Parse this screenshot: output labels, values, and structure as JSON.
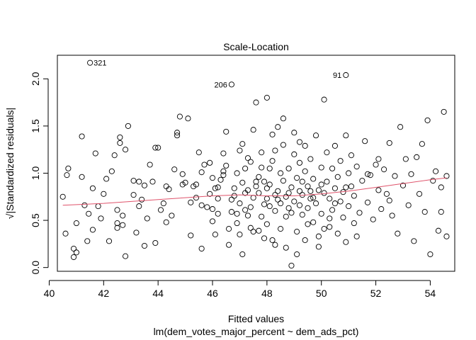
{
  "chart_data": {
    "type": "scatter",
    "title": "Scale-Location",
    "xlabel": "Fitted values",
    "subtitle": "lm(dem_votes_major_percent ~ dem_ads_pct)",
    "ylabel": "√|Standardized residuals|",
    "xlim": [
      40.3,
      54.9
    ],
    "ylim": [
      -0.04,
      2.25
    ],
    "xticks": [
      40,
      42,
      44,
      46,
      48,
      50,
      52,
      54
    ],
    "yticks": [
      0.0,
      0.5,
      1.0,
      1.5,
      2.0
    ],
    "ytick_labels": [
      "0.0",
      "0.5",
      "1.0",
      "1.5",
      "2.0"
    ],
    "grid": false,
    "point_color": "#000000",
    "smooth_color": "#df536b",
    "labeled_points": [
      {
        "label": "321",
        "x": 41.5,
        "y": 2.17
      },
      {
        "label": "206",
        "x": 46.7,
        "y": 1.94
      },
      {
        "label": "91",
        "x": 50.9,
        "y": 2.04
      }
    ],
    "smooth_line": [
      {
        "x": 40.5,
        "y": 0.66
      },
      {
        "x": 42,
        "y": 0.68
      },
      {
        "x": 44,
        "y": 0.72
      },
      {
        "x": 46,
        "y": 0.76
      },
      {
        "x": 47,
        "y": 0.77
      },
      {
        "x": 48,
        "y": 0.76
      },
      {
        "x": 49,
        "y": 0.76
      },
      {
        "x": 50,
        "y": 0.78
      },
      {
        "x": 51,
        "y": 0.81
      },
      {
        "x": 52,
        "y": 0.85
      },
      {
        "x": 53,
        "y": 0.89
      },
      {
        "x": 54,
        "y": 0.93
      },
      {
        "x": 54.6,
        "y": 0.95
      }
    ],
    "points": [
      [
        40.5,
        0.75
      ],
      [
        40.6,
        0.36
      ],
      [
        40.65,
        0.98
      ],
      [
        40.7,
        1.05
      ],
      [
        40.9,
        0.11
      ],
      [
        40.9,
        0.2
      ],
      [
        41.0,
        0.16
      ],
      [
        41.0,
        0.47
      ],
      [
        41.2,
        0.96
      ],
      [
        41.2,
        1.39
      ],
      [
        41.3,
        0.66
      ],
      [
        41.4,
        0.28
      ],
      [
        41.45,
        0.57
      ],
      [
        41.6,
        0.4
      ],
      [
        41.6,
        0.84
      ],
      [
        41.7,
        1.21
      ],
      [
        41.8,
        0.65
      ],
      [
        41.9,
        0.52
      ],
      [
        42.0,
        0.78
      ],
      [
        42.1,
        0.94
      ],
      [
        42.2,
        0.28
      ],
      [
        42.3,
        1.02
      ],
      [
        42.4,
        1.19
      ],
      [
        42.5,
        0.61
      ],
      [
        42.5,
        0.42
      ],
      [
        42.6,
        1.32
      ],
      [
        42.6,
        1.38
      ],
      [
        42.7,
        0.55
      ],
      [
        42.8,
        0.12
      ],
      [
        42.8,
        1.25
      ],
      [
        42.9,
        1.5
      ],
      [
        42.5,
        0.47
      ],
      [
        42.7,
        0.45
      ],
      [
        43.1,
        0.77
      ],
      [
        43.1,
        0.92
      ],
      [
        43.2,
        0.37
      ],
      [
        43.3,
        0.65
      ],
      [
        43.3,
        0.91
      ],
      [
        43.4,
        0.72
      ],
      [
        43.5,
        0.23
      ],
      [
        43.5,
        0.87
      ],
      [
        43.6,
        0.52
      ],
      [
        43.7,
        1.09
      ],
      [
        43.8,
        0.91
      ],
      [
        43.9,
        0.26
      ],
      [
        43.9,
        1.27
      ],
      [
        44.0,
        1.27
      ],
      [
        44.1,
        0.61
      ],
      [
        44.2,
        0.68
      ],
      [
        44.3,
        0.48
      ],
      [
        44.4,
        0.83
      ],
      [
        44.5,
        0.55
      ],
      [
        44.6,
        1.04
      ],
      [
        44.7,
        1.4
      ],
      [
        44.7,
        1.43
      ],
      [
        44.8,
        1.6
      ],
      [
        44.9,
        0.88
      ],
      [
        45.0,
        0.9
      ],
      [
        45.1,
        1.58
      ],
      [
        45.2,
        0.34
      ],
      [
        45.3,
        0.86
      ],
      [
        45.4,
        0.88
      ],
      [
        45.5,
        1.22
      ],
      [
        45.6,
        1.01
      ],
      [
        45.6,
        0.66
      ],
      [
        45.7,
        1.09
      ],
      [
        45.8,
        0.64
      ],
      [
        45.9,
        1.11
      ],
      [
        45.6,
        0.2
      ],
      [
        46.0,
        0.62
      ],
      [
        46.0,
        0.49
      ],
      [
        46.1,
        0.35
      ],
      [
        46.1,
        0.84
      ],
      [
        46.2,
        0.73
      ],
      [
        46.2,
        0.85
      ],
      [
        46.3,
        0.93
      ],
      [
        46.4,
        0.98
      ],
      [
        46.5,
        1.08
      ],
      [
        46.5,
        1.44
      ],
      [
        46.6,
        0.41
      ],
      [
        46.6,
        0.24
      ],
      [
        46.7,
        0.59
      ],
      [
        46.8,
        0.76
      ],
      [
        46.8,
        0.84
      ],
      [
        46.9,
        0.57
      ],
      [
        46.9,
        1.0
      ],
      [
        47.0,
        1.24
      ],
      [
        47.0,
        0.35
      ],
      [
        47.0,
        0.68
      ],
      [
        47.1,
        0.9
      ],
      [
        47.1,
        0.14
      ],
      [
        47.2,
        1.05
      ],
      [
        47.2,
        0.79
      ],
      [
        47.3,
        1.16
      ],
      [
        47.3,
        0.55
      ],
      [
        47.4,
        0.64
      ],
      [
        47.4,
        1.12
      ],
      [
        47.5,
        0.38
      ],
      [
        47.5,
        0.74
      ],
      [
        47.6,
        0.86
      ],
      [
        47.6,
        1.75
      ],
      [
        47.7,
        0.96
      ],
      [
        47.7,
        0.79
      ],
      [
        47.8,
        1.22
      ],
      [
        47.8,
        0.54
      ],
      [
        47.9,
        0.91
      ],
      [
        47.9,
        0.67
      ],
      [
        48.0,
        1.8
      ],
      [
        48.0,
        0.73
      ],
      [
        48.0,
        0.46
      ],
      [
        48.1,
        0.88
      ],
      [
        48.1,
        1.05
      ],
      [
        48.2,
        0.29
      ],
      [
        48.2,
        1.13
      ],
      [
        48.3,
        0.77
      ],
      [
        48.3,
        0.6
      ],
      [
        48.4,
        0.81
      ],
      [
        48.4,
        1.49
      ],
      [
        48.5,
        0.68
      ],
      [
        48.5,
        0.41
      ],
      [
        48.6,
        0.92
      ],
      [
        48.6,
        1.3
      ],
      [
        48.7,
        0.75
      ],
      [
        48.7,
        0.21
      ],
      [
        48.8,
        0.63
      ],
      [
        48.8,
        1.05
      ],
      [
        48.9,
        0.85
      ],
      [
        48.9,
        0.02
      ],
      [
        49.0,
        0.7
      ],
      [
        49.0,
        1.2
      ],
      [
        49.1,
        0.95
      ],
      [
        49.1,
        0.38
      ],
      [
        49.2,
        0.81
      ],
      [
        49.2,
        1.33
      ],
      [
        49.3,
        0.56
      ],
      [
        49.3,
        0.77
      ],
      [
        49.4,
        1.02
      ],
      [
        49.4,
        0.29
      ],
      [
        49.5,
        0.86
      ],
      [
        49.5,
        0.63
      ],
      [
        49.6,
        1.15
      ],
      [
        49.6,
        0.73
      ],
      [
        49.7,
        0.48
      ],
      [
        49.7,
        0.94
      ],
      [
        49.8,
        1.4
      ],
      [
        49.8,
        0.68
      ],
      [
        49.9,
        0.82
      ],
      [
        49.9,
        0.22
      ],
      [
        50.0,
        1.06
      ],
      [
        50.0,
        0.57
      ],
      [
        50.1,
        1.78
      ],
      [
        50.1,
        0.79
      ],
      [
        50.2,
        0.91
      ],
      [
        50.2,
        1.22
      ],
      [
        50.3,
        0.43
      ],
      [
        50.3,
        0.73
      ],
      [
        50.4,
        1.05
      ],
      [
        50.4,
        0.61
      ],
      [
        50.5,
        0.84
      ],
      [
        50.5,
        1.29
      ],
      [
        50.6,
        0.36
      ],
      [
        50.6,
        0.96
      ],
      [
        50.7,
        0.7
      ],
      [
        50.7,
        1.13
      ],
      [
        50.8,
        0.53
      ],
      [
        50.8,
        0.8
      ],
      [
        50.9,
        1.4
      ],
      [
        50.9,
        0.27
      ],
      [
        51.0,
        1.0
      ],
      [
        51.0,
        0.65
      ],
      [
        51.1,
        0.86
      ],
      [
        51.1,
        1.19
      ],
      [
        51.2,
        0.47
      ],
      [
        51.2,
        0.76
      ],
      [
        51.3,
        1.07
      ],
      [
        51.4,
        0.58
      ],
      [
        51.5,
        0.92
      ],
      [
        51.6,
        1.34
      ],
      [
        51.7,
        0.69
      ],
      [
        51.8,
        0.98
      ],
      [
        51.9,
        0.51
      ],
      [
        52.0,
        1.09
      ],
      [
        52.1,
        0.82
      ],
      [
        52.2,
        0.62
      ],
      [
        52.3,
        1.04
      ],
      [
        52.4,
        0.78
      ],
      [
        52.5,
        1.32
      ],
      [
        52.6,
        0.55
      ],
      [
        52.7,
        0.97
      ],
      [
        52.8,
        0.36
      ],
      [
        52.9,
        1.49
      ],
      [
        53.0,
        0.87
      ],
      [
        53.1,
        1.15
      ],
      [
        53.2,
        0.66
      ],
      [
        53.3,
        0.99
      ],
      [
        53.4,
        0.28
      ],
      [
        53.5,
        1.17
      ],
      [
        53.6,
        0.78
      ],
      [
        53.7,
        1.31
      ],
      [
        53.8,
        0.59
      ],
      [
        53.9,
        1.56
      ],
      [
        54.0,
        0.14
      ],
      [
        54.1,
        0.92
      ],
      [
        54.2,
        1.02
      ],
      [
        54.3,
        0.39
      ],
      [
        54.4,
        0.85
      ],
      [
        54.5,
        1.65
      ],
      [
        54.6,
        0.97
      ],
      [
        54.6,
        0.33
      ],
      [
        54.4,
        0.59
      ],
      [
        44.3,
        0.86
      ],
      [
        44.9,
        0.99
      ],
      [
        45.4,
        0.74
      ],
      [
        46.0,
        0.95
      ],
      [
        46.4,
        1.21
      ],
      [
        46.9,
        0.47
      ],
      [
        47.3,
        0.82
      ],
      [
        47.7,
        0.39
      ],
      [
        48.1,
        0.65
      ],
      [
        48.5,
        1.0
      ],
      [
        48.9,
        0.58
      ],
      [
        49.3,
        0.91
      ],
      [
        49.7,
        0.74
      ],
      [
        50.1,
        0.41
      ],
      [
        50.5,
        0.68
      ],
      [
        50.9,
        0.85
      ],
      [
        51.3,
        0.33
      ],
      [
        51.7,
        0.99
      ],
      [
        52.1,
        1.15
      ],
      [
        52.5,
        0.71
      ],
      [
        46.2,
        0.57
      ],
      [
        46.7,
        0.72
      ],
      [
        47.2,
        0.61
      ],
      [
        47.6,
        0.91
      ],
      [
        48.0,
        0.84
      ],
      [
        48.4,
        0.72
      ],
      [
        48.8,
        0.79
      ],
      [
        49.2,
        0.66
      ],
      [
        49.6,
        0.81
      ],
      [
        50.0,
        0.88
      ],
      [
        47.4,
        0.42
      ],
      [
        47.9,
        0.31
      ],
      [
        48.3,
        0.24
      ],
      [
        48.7,
        0.54
      ],
      [
        49.1,
        0.14
      ],
      [
        49.5,
        0.46
      ],
      [
        49.9,
        0.33
      ],
      [
        50.3,
        0.52
      ],
      [
        47.1,
        1.31
      ],
      [
        47.5,
        1.46
      ],
      [
        48.2,
        1.41
      ],
      [
        48.6,
        1.58
      ],
      [
        49.0,
        1.43
      ],
      [
        49.4,
        1.29
      ],
      [
        47.8,
        1.06
      ],
      [
        48.3,
        1.24
      ],
      [
        49.2,
        1.11
      ],
      [
        46.4,
        1.02
      ],
      [
        45.9,
        0.78
      ],
      [
        45.2,
        0.69
      ]
    ]
  }
}
